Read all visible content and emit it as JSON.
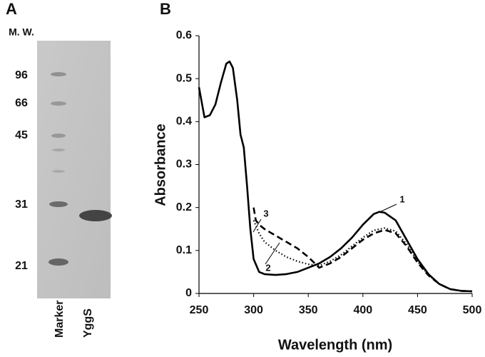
{
  "gel": {
    "panel_label": "A",
    "mw_label": "M. W.",
    "markers": [
      "96",
      "66",
      "45",
      "31",
      "21"
    ],
    "lanes": [
      "Marker",
      "YggS"
    ]
  },
  "chart_data": {
    "type": "line",
    "panel_label": "B",
    "xlabel": "Wavelength (nm)",
    "ylabel": "Absorbance",
    "xlim": [
      250,
      500
    ],
    "ylim": [
      0,
      0.6
    ],
    "xticks": [
      250,
      300,
      350,
      400,
      450,
      500
    ],
    "yticks": [
      0,
      0.1,
      0.2,
      0.3,
      0.4,
      0.5,
      0.6
    ],
    "series": [
      {
        "name": "1",
        "color": "#000000",
        "dash": "solid",
        "x": [
          250,
          255,
          260,
          265,
          270,
          275,
          278,
          281,
          285,
          288,
          291,
          294,
          297,
          300,
          305,
          310,
          320,
          330,
          340,
          350,
          360,
          370,
          380,
          390,
          400,
          410,
          415,
          420,
          430,
          440,
          450,
          460,
          470,
          480,
          490,
          500
        ],
        "values": [
          0.48,
          0.41,
          0.415,
          0.44,
          0.49,
          0.535,
          0.54,
          0.525,
          0.45,
          0.37,
          0.34,
          0.25,
          0.15,
          0.08,
          0.05,
          0.045,
          0.043,
          0.045,
          0.05,
          0.06,
          0.07,
          0.085,
          0.105,
          0.13,
          0.16,
          0.185,
          0.19,
          0.188,
          0.17,
          0.125,
          0.08,
          0.045,
          0.022,
          0.01,
          0.006,
          0.005
        ]
      },
      {
        "name": "2",
        "color": "#000000",
        "dash": "dotted",
        "x": [
          300,
          305,
          310,
          320,
          330,
          340,
          350,
          360,
          370,
          380,
          390,
          400,
          410,
          420,
          430,
          440,
          450,
          460,
          470,
          480,
          490,
          500
        ],
        "values": [
          0.17,
          0.14,
          0.12,
          0.1,
          0.085,
          0.075,
          0.068,
          0.065,
          0.075,
          0.09,
          0.11,
          0.13,
          0.147,
          0.152,
          0.145,
          0.115,
          0.075,
          0.043,
          0.022,
          0.01,
          0.006,
          0.005
        ]
      },
      {
        "name": "3",
        "color": "#000000",
        "dash": "dashed",
        "x": [
          300,
          302,
          305,
          310,
          320,
          330,
          340,
          350,
          360,
          370,
          380,
          390,
          400,
          410,
          420,
          430,
          440,
          450,
          460,
          470,
          480,
          490,
          500
        ],
        "values": [
          0.2,
          0.17,
          0.16,
          0.15,
          0.135,
          0.12,
          0.105,
          0.085,
          0.06,
          0.07,
          0.085,
          0.105,
          0.125,
          0.14,
          0.148,
          0.14,
          0.11,
          0.072,
          0.042,
          0.022,
          0.01,
          0.006,
          0.005
        ]
      }
    ]
  }
}
